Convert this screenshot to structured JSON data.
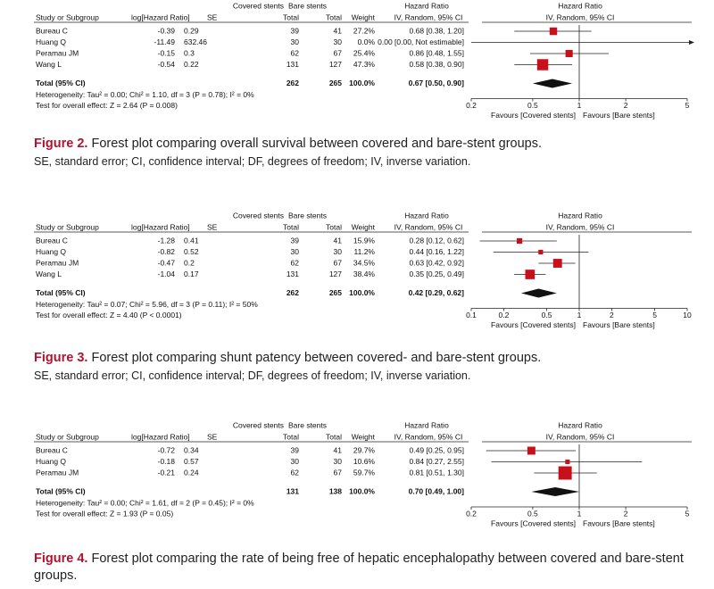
{
  "figures": [
    {
      "plot": {
        "group1": "Covered stents",
        "group2": "Bare stents",
        "hr_left": "Hazard Ratio",
        "hr_right": "Hazard Ratio",
        "columns": [
          "Study or Subgroup",
          "log[Hazard Ratio]",
          "SE",
          "Total",
          "Total",
          "Weight",
          "IV, Random, 95% CI",
          "IV, Random, 95% CI"
        ],
        "rows": [
          {
            "study": "Bureau C",
            "loghr": -0.39,
            "se": 0.29,
            "total1": 39,
            "total2": 41,
            "weight": 27.2,
            "weight_label": "27.2%",
            "ci": "0.68 [0.38, 1.20]",
            "hr": 0.68,
            "lo": 0.38,
            "hi": 1.2
          },
          {
            "study": "Huang Q",
            "loghr": -11.49,
            "se": 632.46,
            "total1": 30,
            "total2": 30,
            "weight_label": "0.0%",
            "ci": "0.00 [0.00, Not estimable]",
            "hr": null,
            "lo": null,
            "hi": null
          },
          {
            "study": "Peramau JM",
            "loghr": -0.15,
            "se": 0.3,
            "total1": 62,
            "total2": 67,
            "weight": 25.4,
            "weight_label": "25.4%",
            "ci": "0.86 [0.48, 1.55]",
            "hr": 0.86,
            "lo": 0.48,
            "hi": 1.55
          },
          {
            "study": "Wang L",
            "loghr": -0.54,
            "se": 0.22,
            "total1": 131,
            "total2": 127,
            "weight": 47.3,
            "weight_label": "47.3%",
            "ci": "0.58 [0.38, 0.90]",
            "hr": 0.58,
            "lo": 0.38,
            "hi": 0.9
          }
        ],
        "total": {
          "study": "Total (95% CI)",
          "total1": 262,
          "total2": 265,
          "weight_label": "100.0%",
          "ci": "0.67 [0.50, 0.90]",
          "hr": 0.67,
          "lo": 0.5,
          "hi": 0.9
        },
        "heterogeneity": "Heterogeneity: Tau² = 0.00; Chi² = 1.10, df = 3 (P = 0.78); I² = 0%",
        "overall_test": "Test for overall effect: Z = 2.64 (P = 0.008)",
        "log_scale": true,
        "xlim": [
          0.2,
          5
        ],
        "xticks": [
          0.2,
          0.5,
          1,
          2,
          5
        ],
        "favours_left": "Favours [Covered stents]",
        "favours_right": "Favours [Bare stents]"
      },
      "caption": {
        "label": "Figure 2.",
        "text": "Forest plot comparing overall survival between covered and bare-stent groups.",
        "note": "SE, standard error; CI, confidence interval; DF, degrees of freedom; IV, inverse variation."
      }
    },
    {
      "plot": {
        "group1": "Covered stents",
        "group2": "Bare stents",
        "hr_left": "Hazard Ratio",
        "hr_right": "Hazard Ratio",
        "columns": [
          "Study or Subgroup",
          "log[Hazard Ratio]",
          "SE",
          "Total",
          "Total",
          "Weight",
          "IV, Random, 95% CI",
          "IV, Random, 95% CI"
        ],
        "rows": [
          {
            "study": "Bureau C",
            "loghr": -1.28,
            "se": 0.41,
            "total1": 39,
            "total2": 41,
            "weight": 15.9,
            "weight_label": "15.9%",
            "ci": "0.28 [0.12, 0.62]",
            "hr": 0.28,
            "lo": 0.12,
            "hi": 0.62
          },
          {
            "study": "Huang Q",
            "loghr": -0.82,
            "se": 0.52,
            "total1": 30,
            "total2": 30,
            "weight": 11.2,
            "weight_label": "11.2%",
            "ci": "0.44 [0.16, 1.22]",
            "hr": 0.44,
            "lo": 0.16,
            "hi": 1.22
          },
          {
            "study": "Peramau JM",
            "loghr": -0.47,
            "se": 0.2,
            "total1": 62,
            "total2": 67,
            "weight": 34.5,
            "weight_label": "34.5%",
            "ci": "0.63 [0.42, 0.92]",
            "hr": 0.63,
            "lo": 0.42,
            "hi": 0.92
          },
          {
            "study": "Wang L",
            "loghr": -1.04,
            "se": 0.17,
            "total1": 131,
            "total2": 127,
            "weight": 38.4,
            "weight_label": "38.4%",
            "ci": "0.35 [0.25, 0.49]",
            "hr": 0.35,
            "lo": 0.25,
            "hi": 0.49
          }
        ],
        "total": {
          "study": "Total (95% CI)",
          "total1": 262,
          "total2": 265,
          "weight_label": "100.0%",
          "ci": "0.42 [0.29, 0.62]",
          "hr": 0.42,
          "lo": 0.29,
          "hi": 0.62
        },
        "heterogeneity": "Heterogeneity: Tau² = 0.07; Chi² = 5.96, df = 3 (P = 0.11); I² = 50%",
        "overall_test": "Test for overall effect: Z = 4.40 (P < 0.0001)",
        "log_scale": true,
        "xlim": [
          0.1,
          10
        ],
        "xticks": [
          0.1,
          0.2,
          0.5,
          1,
          2,
          5,
          10
        ],
        "favours_left": "Favours [Covered stents]",
        "favours_right": "Favours [Bare stents]"
      },
      "caption": {
        "label": "Figure 3.",
        "text": "Forest plot comparing shunt patency between covered- and bare-stent groups.",
        "note": "SE, standard error; CI, confidence interval; DF, degrees of freedom; IV, inverse variation."
      }
    },
    {
      "plot": {
        "group1": "Covered stents",
        "group2": "Bare stents",
        "hr_left": "Hazard Ratio",
        "hr_right": "Hazard Ratio",
        "columns": [
          "Study or Subgroup",
          "log[Hazard Ratio]",
          "SE",
          "Total",
          "Total",
          "Weight",
          "IV, Random, 95% CI",
          "IV, Random, 95% CI"
        ],
        "rows": [
          {
            "study": "Bureau C",
            "loghr": -0.72,
            "se": 0.34,
            "total1": 39,
            "total2": 41,
            "weight": 29.7,
            "weight_label": "29.7%",
            "ci": "0.49 [0.25, 0.95]",
            "hr": 0.49,
            "lo": 0.25,
            "hi": 0.95
          },
          {
            "study": "Huang Q",
            "loghr": -0.18,
            "se": 0.57,
            "total1": 30,
            "total2": 30,
            "weight": 10.6,
            "weight_label": "10.6%",
            "ci": "0.84 [0.27, 2.55]",
            "hr": 0.84,
            "lo": 0.27,
            "hi": 2.55
          },
          {
            "study": "Peramau JM",
            "loghr": -0.21,
            "se": 0.24,
            "total1": 62,
            "total2": 67,
            "weight": 59.7,
            "weight_label": "59.7%",
            "ci": "0.81 [0.51, 1.30]",
            "hr": 0.81,
            "lo": 0.51,
            "hi": 1.3
          }
        ],
        "total": {
          "study": "Total (95% CI)",
          "total1": 131,
          "total2": 138,
          "weight_label": "100.0%",
          "ci": "0.70 [0.49, 1.00]",
          "hr": 0.7,
          "lo": 0.49,
          "hi": 1.0
        },
        "heterogeneity": "Heterogeneity: Tau² = 0.00; Chi² = 1.61, df = 2 (P = 0.45); I² = 0%",
        "overall_test": "Test for overall effect: Z = 1.93 (P = 0.05)",
        "log_scale": true,
        "xlim": [
          0.2,
          5
        ],
        "xticks": [
          0.2,
          0.5,
          1,
          2,
          5
        ],
        "favours_left": "Favours [Covered stents]",
        "favours_right": "Favours [Bare stents]"
      },
      "caption": {
        "label": "Figure 4.",
        "text": "Forest plot comparing the rate of being free of hepatic encephalopathy between covered and bare-stent groups."
      }
    }
  ]
}
